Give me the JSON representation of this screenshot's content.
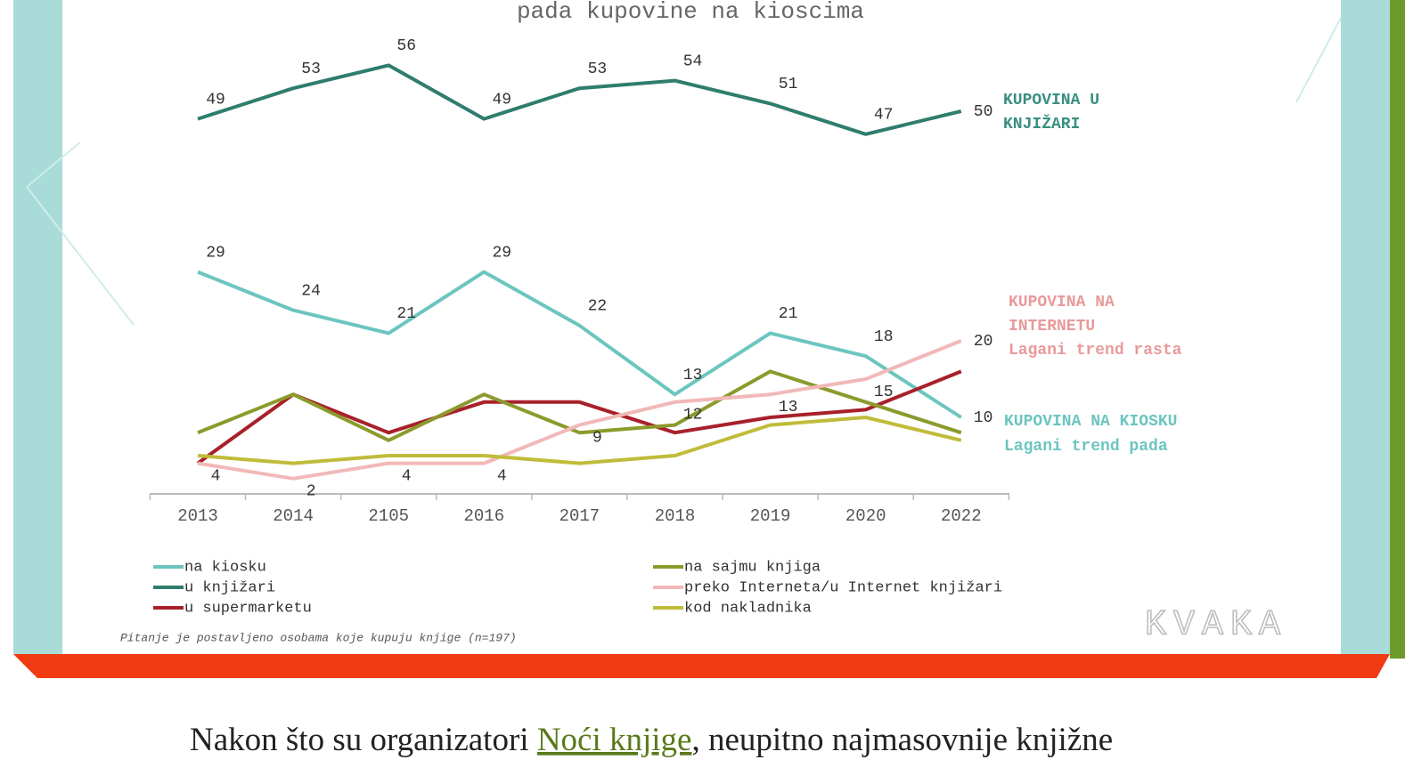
{
  "chart_data": {
    "type": "line",
    "title": "pada kupovine na kioscima",
    "categories": [
      "2013",
      "2014",
      "2105",
      "2016",
      "2017",
      "2018",
      "2019",
      "2020",
      "2022"
    ],
    "ylim": [
      0,
      60
    ],
    "series": [
      {
        "name": "na kiosku",
        "color": "#6cc5bf",
        "show_labels": true,
        "values": [
          29,
          24,
          21,
          29,
          22,
          13,
          21,
          18,
          10
        ]
      },
      {
        "name": "u knjižari",
        "color": "#2e7d6e",
        "show_labels": true,
        "values": [
          49,
          53,
          56,
          49,
          53,
          54,
          51,
          47,
          50
        ]
      },
      {
        "name": "u supermarketu",
        "color": "#a8202a",
        "show_labels": false,
        "values": [
          4,
          13,
          8,
          12,
          12,
          8,
          10,
          11,
          16
        ]
      },
      {
        "name": "na sajmu knjiga",
        "color": "#8c9a2c",
        "show_labels": false,
        "values": [
          8,
          13,
          7,
          13,
          8,
          9,
          16,
          12,
          8
        ]
      },
      {
        "name": "preko Interneta/u Internet knjižari",
        "color": "#f2b8b8",
        "show_labels": true,
        "values": [
          4,
          2,
          4,
          4,
          9,
          12,
          13,
          15,
          20
        ]
      },
      {
        "name": "kod nakladnika",
        "color": "#c0bc3a",
        "show_labels": false,
        "values": [
          5,
          4,
          5,
          5,
          4,
          5,
          9,
          10,
          7
        ]
      }
    ],
    "annotations": [
      "KUPOVINA U",
      "KNJIŽARI",
      "KUPOVINA NA",
      "INTERNETU",
      "Lagani trend rasta",
      "KUPOVINA NA KIOSKU",
      "Lagani trend pada"
    ],
    "note": "Pitanje je postavljeno osobama koje kupuju knjige (n=197)",
    "logo": "KVAKA"
  },
  "article": {
    "before": "Nakon što su organizatori ",
    "link": "Noći knjige",
    "after": ", neupitno najmasovnije knjižne"
  }
}
